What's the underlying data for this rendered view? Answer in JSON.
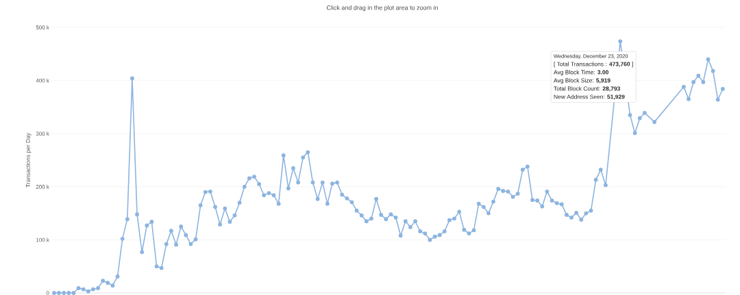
{
  "chart_data": {
    "type": "line",
    "subtitle": "Click and drag in the plot area to zoom in",
    "ylabel": "Transactions per Day",
    "categories": [
      null,
      null,
      null,
      null,
      null,
      null,
      null,
      null,
      null,
      null,
      null,
      null,
      null,
      null,
      null,
      null,
      null,
      null,
      null,
      null,
      null,
      null,
      null,
      null,
      null,
      null,
      null,
      null,
      null,
      null,
      null,
      null,
      null,
      null,
      null,
      null,
      null,
      null,
      null,
      null,
      null,
      null,
      null,
      null,
      null,
      null,
      null,
      null,
      null,
      null,
      null,
      null,
      null,
      null,
      null,
      null,
      null,
      null,
      null,
      null,
      null,
      null,
      null,
      null,
      null,
      null,
      null,
      null,
      null,
      null,
      null,
      null,
      null,
      null,
      null,
      null,
      null,
      null,
      null,
      null,
      null,
      null,
      null,
      null,
      null,
      null,
      null,
      null,
      null,
      null,
      null,
      null,
      null,
      null,
      null,
      null,
      null,
      null,
      null,
      null,
      null,
      null,
      null,
      null,
      null,
      null,
      null,
      null,
      null,
      null,
      null,
      null,
      null,
      null,
      null,
      null,
      null,
      null,
      null,
      null,
      null,
      null,
      null,
      null,
      null,
      null,
      null,
      null,
      null,
      null,
      null,
      null,
      null,
      null,
      null,
      null,
      null,
      null
    ],
    "series": [
      {
        "color": "#8cb4e0",
        "values": [
          0,
          0,
          0,
          0,
          0,
          9000,
          7000,
          3000,
          7000,
          9000,
          23000,
          19000,
          14000,
          31000,
          102000,
          139000,
          404000,
          148000,
          77000,
          127000,
          134000,
          50000,
          47000,
          92000,
          117000,
          91000,
          125000,
          109000,
          92000,
          101000,
          165000,
          190000,
          191000,
          162000,
          129000,
          159000,
          134000,
          146000,
          170000,
          200000,
          216000,
          219000,
          205000,
          184000,
          188000,
          184000,
          168000,
          259000,
          197000,
          235000,
          208000,
          255000,
          265000,
          208000,
          177000,
          208000,
          168000,
          206000,
          208000,
          185000,
          178000,
          171000,
          155000,
          146000,
          135000,
          140000,
          177000,
          147000,
          139000,
          148000,
          142000,
          108000,
          135000,
          124000,
          135000,
          116000,
          112000,
          100000,
          106000,
          109000,
          116000,
          137000,
          140000,
          153000,
          119000,
          112000,
          118000,
          168000,
          162000,
          150000,
          172000,
          196000,
          192000,
          191000,
          181000,
          187000,
          232000,
          238000,
          175000,
          174000,
          163000,
          191000,
          174000,
          169000,
          167000,
          147000,
          142000,
          151000,
          138000,
          150000,
          155000,
          213000,
          232000,
          203000,
          null,
          null,
          473760,
          null,
          335000,
          301000,
          329000,
          339000,
          null,
          322000,
          null,
          null,
          null,
          null,
          null,
          388000,
          365000,
          397000,
          409000,
          397000,
          440000,
          418000,
          364000,
          384000
        ]
      }
    ],
    "ylim": [
      0,
      500000
    ],
    "yticks": [
      0,
      {
        "value": 100000,
        "label": "100 k"
      },
      {
        "value": 200000,
        "label": "200 k"
      },
      {
        "value": 300000,
        "label": "300 k"
      },
      {
        "value": 400000,
        "label": "400 k"
      },
      {
        "value": 500000,
        "label": "500 k"
      }
    ],
    "grid": "y",
    "marker": "circle",
    "line_style": "solid",
    "annotations": [
      "Wednesday, December 23, 2020",
      "[ Total Transactions : **473,760** ]",
      "Avg Block Time: **3.00**",
      "Avg Block Size: **5,919**",
      "Total Block Count: **28,793**",
      "New Address Seen: **51,929**"
    ]
  }
}
